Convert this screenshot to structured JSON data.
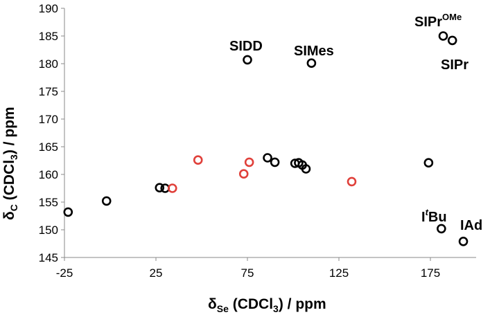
{
  "chart_data": {
    "type": "scatter",
    "x_axis": {
      "label_main": "δ",
      "label_sub": "Se",
      "label_rest": " (CDCl",
      "label_sub2": "3",
      "label_end": ") / ppm",
      "range": [
        -25,
        200
      ],
      "ticks": [
        "-25",
        "25",
        "75",
        "125",
        "175"
      ],
      "tick_values": [
        -25,
        25,
        75,
        125,
        175
      ]
    },
    "y_axis": {
      "label_main": "δ",
      "label_sub": "C",
      "label_rest": " (CDCl",
      "label_sub2": "3",
      "label_end": ") / ppm",
      "range": [
        145,
        190
      ],
      "ticks": [
        "145",
        "150",
        "155",
        "160",
        "165",
        "170",
        "175",
        "180",
        "185",
        "190"
      ],
      "tick_values": [
        145,
        150,
        155,
        160,
        165,
        170,
        175,
        180,
        185,
        190
      ]
    },
    "grid": false,
    "legend": "none",
    "colors": {
      "black": "#000000",
      "red": "#e0403a"
    },
    "series": [
      {
        "color": "black",
        "points": [
          {
            "x": -23,
            "y": 153.2
          },
          {
            "x": -2,
            "y": 155.2
          },
          {
            "x": 27,
            "y": 157.6
          },
          {
            "x": 30,
            "y": 157.5
          },
          {
            "x": 75,
            "y": 180.7
          },
          {
            "x": 86,
            "y": 163.0
          },
          {
            "x": 90,
            "y": 162.2
          },
          {
            "x": 101,
            "y": 162.0
          },
          {
            "x": 103,
            "y": 162.1
          },
          {
            "x": 105,
            "y": 161.7
          },
          {
            "x": 107,
            "y": 161.0
          },
          {
            "x": 110,
            "y": 180.1
          },
          {
            "x": 174,
            "y": 162.1
          },
          {
            "x": 181,
            "y": 150.2
          },
          {
            "x": 182,
            "y": 185.0
          },
          {
            "x": 187,
            "y": 184.2
          },
          {
            "x": 193,
            "y": 147.9
          }
        ]
      },
      {
        "color": "red",
        "points": [
          {
            "x": 34,
            "y": 157.5
          },
          {
            "x": 48,
            "y": 162.6
          },
          {
            "x": 73,
            "y": 160.1
          },
          {
            "x": 76,
            "y": 162.2
          },
          {
            "x": 132,
            "y": 158.7
          }
        ]
      }
    ],
    "annotations": [
      {
        "text": "SIDD",
        "sup": ""
      },
      {
        "text": "SIMes",
        "sup": ""
      },
      {
        "text": "SIPr",
        "sup": "OMe"
      },
      {
        "text": "SIPr",
        "sup": ""
      },
      {
        "text": "I",
        "sup": "t",
        "rest": "Bu"
      },
      {
        "text": "IAd",
        "sup": ""
      }
    ]
  }
}
